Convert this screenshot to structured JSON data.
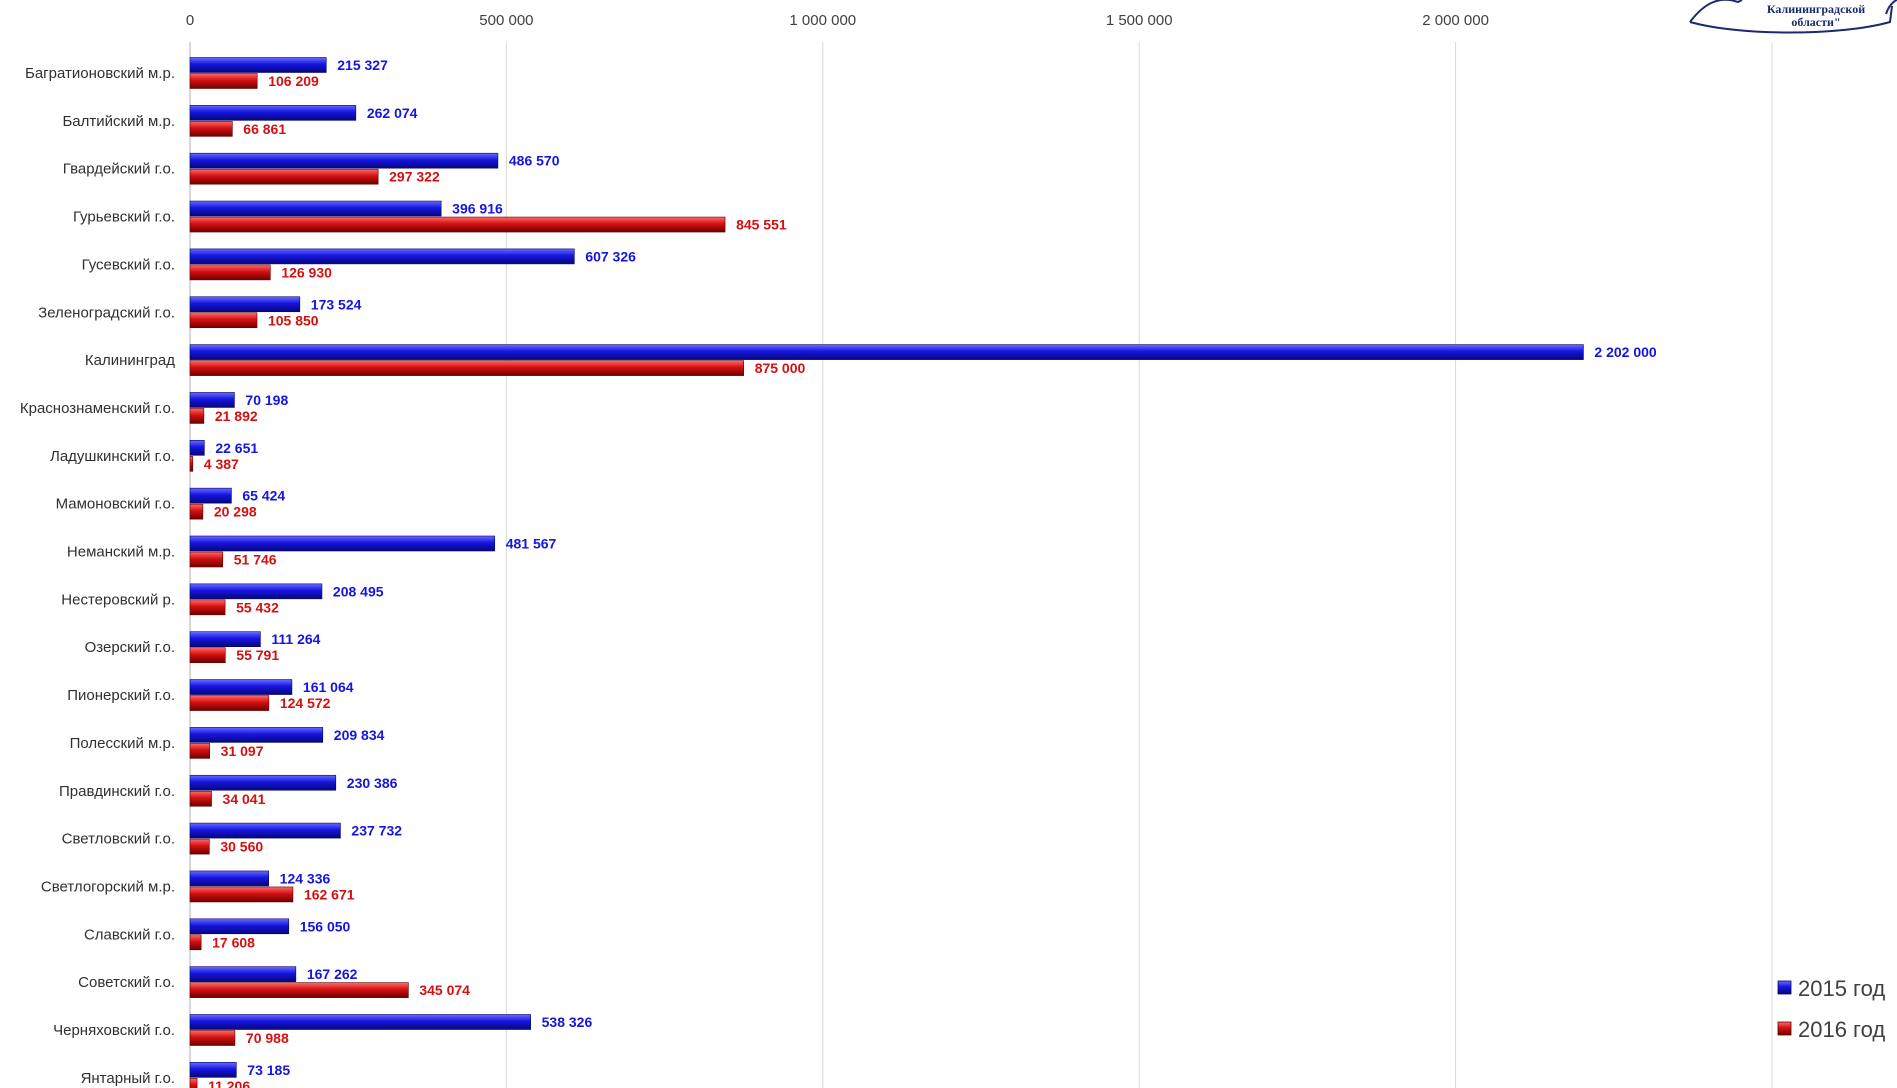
{
  "chart_data": {
    "type": "bar",
    "orientation": "horizontal",
    "categories": [
      "Багратионовский м.р.",
      "Балтийский м.р.",
      "Гвардейский г.о.",
      "Гурьевский г.о.",
      "Гусевский г.о.",
      "Зеленоградский г.о.",
      "Калининград",
      "Краснознаменский г.о.",
      "Ладушкинский г.о.",
      "Мамоновский г.о.",
      "Неманский м.р.",
      "Нестеровский р.",
      "Озерский г.о.",
      "Пионерский г.о.",
      "Полесский м.р.",
      "Правдинский г.о.",
      "Светловский г.о.",
      "Светлогорский м.р.",
      "Славский г.о.",
      "Советский г.о.",
      "Черняховский г.о.",
      "Янтарный г.о."
    ],
    "series": [
      {
        "name": "2015 год",
        "color": "#1515e0",
        "values": [
          215327,
          262074,
          486570,
          396916,
          607326,
          173524,
          2202000,
          70198,
          22651,
          65424,
          481567,
          208495,
          111264,
          161064,
          209834,
          230386,
          237732,
          124336,
          156050,
          167262,
          538326,
          73185
        ],
        "labels": [
          "215 327",
          "262 074",
          "486 570",
          "396 916",
          "607 326",
          "173 524",
          "2 202 000",
          "70 198",
          "22 651",
          "65 424",
          "481 567",
          "208 495",
          "111 264",
          "161 064",
          "209 834",
          "230 386",
          "237 732",
          "124 336",
          "156 050",
          "167 262",
          "538 326",
          "73 185"
        ]
      },
      {
        "name": "2016 год",
        "color": "#d41010",
        "values": [
          106209,
          66861,
          297322,
          845551,
          126930,
          105850,
          875000,
          21892,
          4387,
          20298,
          51746,
          55432,
          55791,
          124572,
          31097,
          34041,
          30560,
          162671,
          17608,
          345074,
          70988,
          11206
        ],
        "labels": [
          "106 209",
          "66 861",
          "297 322",
          "845 551",
          "126 930",
          "105 850",
          "875 000",
          "21 892",
          "4 387",
          "20 298",
          "51 746",
          "55 432",
          "55 791",
          "124 572",
          "31 097",
          "34 041",
          "30 560",
          "162 671",
          "17 608",
          "345 074",
          "70 988",
          "11 206"
        ]
      }
    ],
    "xlim": [
      0,
      2500000
    ],
    "xticks": [
      0,
      500000,
      1000000,
      1500000,
      2000000,
      2500000
    ],
    "xtick_labels": [
      "0",
      "500 000",
      "1 000 000",
      "1 500 000",
      "2 000 000",
      ""
    ],
    "grid": true,
    "legend_position": "bottom-right",
    "title": "",
    "xlabel": "",
    "ylabel": ""
  },
  "logo": {
    "text_line1": "Калининградской",
    "text_line2": "области\""
  }
}
